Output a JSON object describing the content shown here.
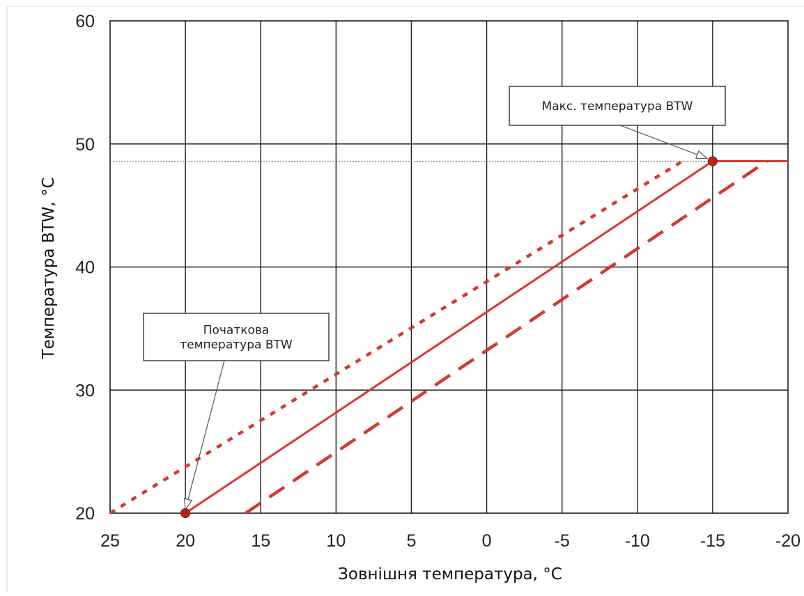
{
  "chart_data": {
    "type": "line",
    "title": "",
    "xlabel": "Зовнішня температура, °C",
    "ylabel": "Температура BTW, °C",
    "xlim": [
      25,
      -20
    ],
    "ylim": [
      20,
      60
    ],
    "x_ticks": [
      25,
      20,
      15,
      10,
      5,
      0,
      -5,
      -10,
      -15,
      -20
    ],
    "y_ticks": [
      20,
      30,
      40,
      50,
      60
    ],
    "grid": true,
    "legend": "none",
    "reference_line": {
      "y": 48.6,
      "style": "dotted",
      "color": "#555555"
    },
    "series": [
      {
        "style": "solid",
        "color": "#d33a2f",
        "points": [
          [
            20,
            20
          ],
          [
            -15,
            48.6
          ],
          [
            -20,
            48.6
          ]
        ]
      },
      {
        "style": "dotted",
        "color": "#d33a2f",
        "points": [
          [
            25,
            20
          ],
          [
            -13,
            48.6
          ]
        ]
      },
      {
        "style": "dashed",
        "color": "#d33a2f",
        "points": [
          [
            16,
            20
          ],
          [
            -18.6,
            48.6
          ]
        ]
      }
    ],
    "markers": [
      {
        "x": 20,
        "y": 20,
        "color": "#b3261e"
      },
      {
        "x": -15,
        "y": 48.6,
        "color": "#b3261e"
      }
    ],
    "annotations": [
      {
        "lines": [
          "Макс. температура BTW"
        ],
        "target_x": -15,
        "target_y": 48.6
      },
      {
        "lines": [
          "Початкова",
          "температура BTW"
        ],
        "target_x": 20,
        "target_y": 20
      }
    ]
  }
}
